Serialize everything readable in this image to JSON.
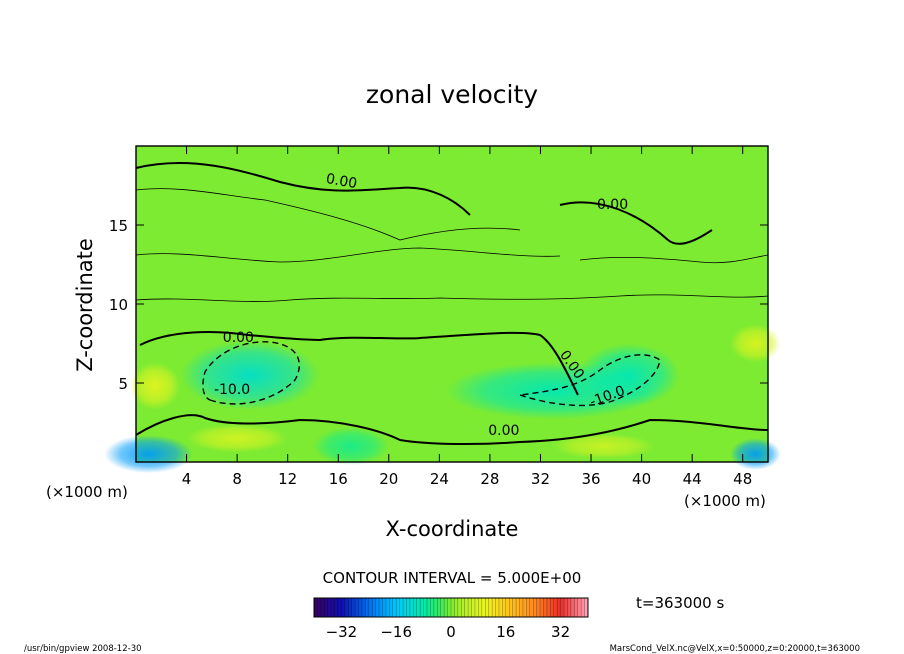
{
  "chart_data": {
    "type": "heatmap",
    "title": "zonal velocity",
    "xlabel": "X-coordinate",
    "ylabel": "Z-coordinate",
    "x_unit": "(×1000 m)",
    "y_unit": "(×1000 m)",
    "xlim": [
      0,
      50
    ],
    "ylim": [
      0,
      20
    ],
    "xticks": [
      4,
      8,
      12,
      16,
      20,
      24,
      28,
      32,
      36,
      40,
      44,
      48
    ],
    "yticks": [
      5,
      10,
      15
    ],
    "contour_interval_text": "CONTOUR INTERVAL = 5.000E+00",
    "time_text": "t=363000 s",
    "colorbar": {
      "range": [
        -40,
        40
      ],
      "ticks": [
        -32,
        -16,
        0,
        16,
        32
      ]
    },
    "contour_labels": [
      {
        "text": "0.00",
        "x": 16.2,
        "z": 17.5,
        "rot": 10
      },
      {
        "text": "0.00",
        "x": 37.7,
        "z": 16.0,
        "rot": 0
      },
      {
        "text": "0.00",
        "x": 8.1,
        "z": 7.6,
        "rot": 0
      },
      {
        "text": "0.00",
        "x": 34.2,
        "z": 6.0,
        "rot": 55
      },
      {
        "text": "-10.0",
        "x": 7.6,
        "z": 4.3,
        "rot": 0
      },
      {
        "text": "-10.0",
        "x": 37.4,
        "z": 3.9,
        "rot": -20
      },
      {
        "text": "0.00",
        "x": 29.1,
        "z": 1.7,
        "rot": 0
      }
    ],
    "features": [
      {
        "type": "blob",
        "x": 9.0,
        "z": 5.5,
        "rx": 5.5,
        "rz": 2.2,
        "value": -11
      },
      {
        "type": "blob",
        "x": 33.0,
        "z": 4.5,
        "rx": 8.5,
        "rz": 1.8,
        "value": -9
      },
      {
        "type": "blob",
        "x": 39.0,
        "z": 5.5,
        "rx": 4.0,
        "rz": 2.0,
        "value": -9
      },
      {
        "type": "blob",
        "x": 1.0,
        "z": 0.5,
        "rx": 3.5,
        "rz": 1.2,
        "value": -20
      },
      {
        "type": "blob",
        "x": 49.0,
        "z": 0.5,
        "rx": 2.0,
        "rz": 1.0,
        "value": -20
      },
      {
        "type": "blob",
        "x": 17.0,
        "z": 1.0,
        "rx": 3.0,
        "rz": 1.2,
        "value": -6
      },
      {
        "type": "blob",
        "x": 1.5,
        "z": 4.8,
        "rx": 2.0,
        "rz": 1.5,
        "value": 9
      },
      {
        "type": "blob",
        "x": 8.0,
        "z": 1.5,
        "rx": 4.0,
        "rz": 0.9,
        "value": 7
      },
      {
        "type": "blob",
        "x": 49.0,
        "z": 7.5,
        "rx": 2.0,
        "rz": 1.2,
        "value": 8
      },
      {
        "type": "blob",
        "x": 37.0,
        "z": 1.0,
        "rx": 4.0,
        "rz": 0.8,
        "value": 6
      }
    ]
  },
  "footer": {
    "left": "/usr/bin/gpview   2008-12-30",
    "right": "MarsCond_VelX.nc@VelX,x=0:50000,z=0:20000,t=363000"
  }
}
